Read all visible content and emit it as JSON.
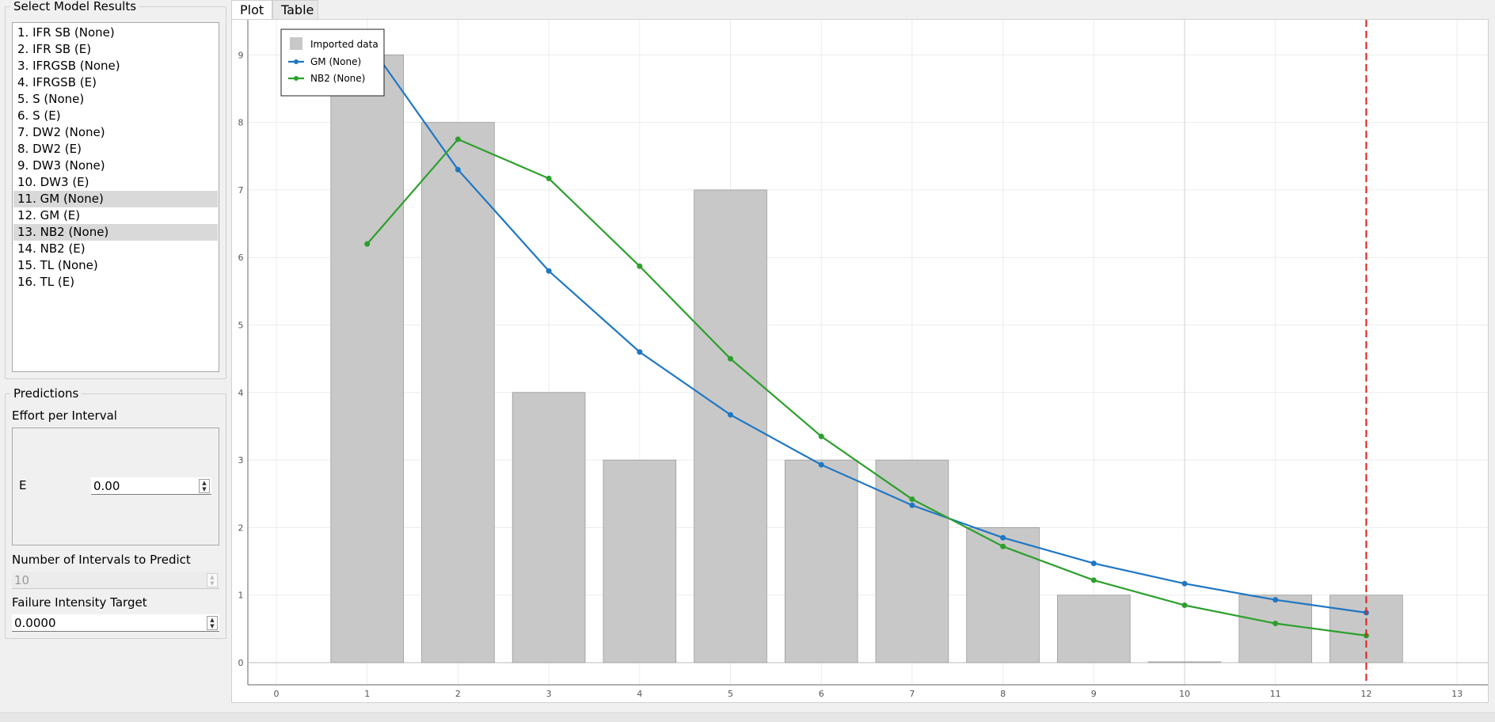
{
  "model_panel": {
    "title": "Select Model Results",
    "items": [
      {
        "label": "1. IFR SB (None)",
        "selected": false
      },
      {
        "label": "2. IFR SB (E)",
        "selected": false
      },
      {
        "label": "3. IFRGSB (None)",
        "selected": false
      },
      {
        "label": "4. IFRGSB (E)",
        "selected": false
      },
      {
        "label": "5. S (None)",
        "selected": false
      },
      {
        "label": "6. S (E)",
        "selected": false
      },
      {
        "label": "7. DW2 (None)",
        "selected": false
      },
      {
        "label": "8. DW2 (E)",
        "selected": false
      },
      {
        "label": "9. DW3 (None)",
        "selected": false
      },
      {
        "label": "10. DW3 (E)",
        "selected": false
      },
      {
        "label": "11. GM (None)",
        "selected": true
      },
      {
        "label": "12. GM (E)",
        "selected": false
      },
      {
        "label": "13. NB2 (None)",
        "selected": true
      },
      {
        "label": "14. NB2 (E)",
        "selected": false
      },
      {
        "label": "15. TL (None)",
        "selected": false
      },
      {
        "label": "16. TL (E)",
        "selected": false
      }
    ]
  },
  "predictions": {
    "title": "Predictions",
    "effort_label": "Effort per Interval",
    "e_label": "E",
    "e_value": "0.00",
    "intervals_label": "Number of Intervals to Predict",
    "intervals_value": "10",
    "target_label": "Failure Intensity Target",
    "target_value": "0.0000"
  },
  "tabs": [
    {
      "label": "Plot",
      "active": true
    },
    {
      "label": "Table",
      "active": false
    }
  ],
  "chart_data": {
    "type": "bar",
    "title": "",
    "xlabel": "",
    "ylabel": "",
    "xlim": [
      -0.5,
      13.5
    ],
    "ylim": [
      -0.35,
      9.5
    ],
    "x_ticks": [
      0,
      1,
      2,
      3,
      4,
      5,
      6,
      7,
      8,
      9,
      10,
      11,
      12,
      13
    ],
    "y_ticks": [
      0,
      1,
      2,
      3,
      4,
      5,
      6,
      7,
      8,
      9
    ],
    "grid": true,
    "legend_position": "top-left",
    "categories": [
      1,
      2,
      3,
      4,
      5,
      6,
      7,
      8,
      9,
      10,
      11,
      12
    ],
    "bars": {
      "name": "Imported data",
      "color": "#c8c8c8",
      "values": [
        9,
        8,
        4,
        3,
        7,
        3,
        3,
        2,
        1,
        0,
        1,
        1
      ]
    },
    "series": [
      {
        "name": "GM (None)",
        "color": "#1f77c4",
        "x": [
          1,
          2,
          3,
          4,
          5,
          6,
          7,
          8,
          9,
          10,
          11,
          12
        ],
        "values": [
          9.2,
          7.3,
          5.8,
          4.6,
          3.67,
          2.93,
          2.33,
          1.85,
          1.47,
          1.17,
          0.93,
          0.74
        ]
      },
      {
        "name": "NB2 (None)",
        "color": "#2ca02c",
        "x": [
          1,
          2,
          3,
          4,
          5,
          6,
          7,
          8,
          9,
          10,
          11,
          12
        ],
        "values": [
          6.2,
          7.75,
          7.17,
          5.87,
          4.5,
          3.35,
          2.42,
          1.72,
          1.22,
          0.85,
          0.58,
          0.4
        ]
      }
    ],
    "vline": {
      "x": 12,
      "color": "#e02020",
      "style": "dashed"
    }
  }
}
